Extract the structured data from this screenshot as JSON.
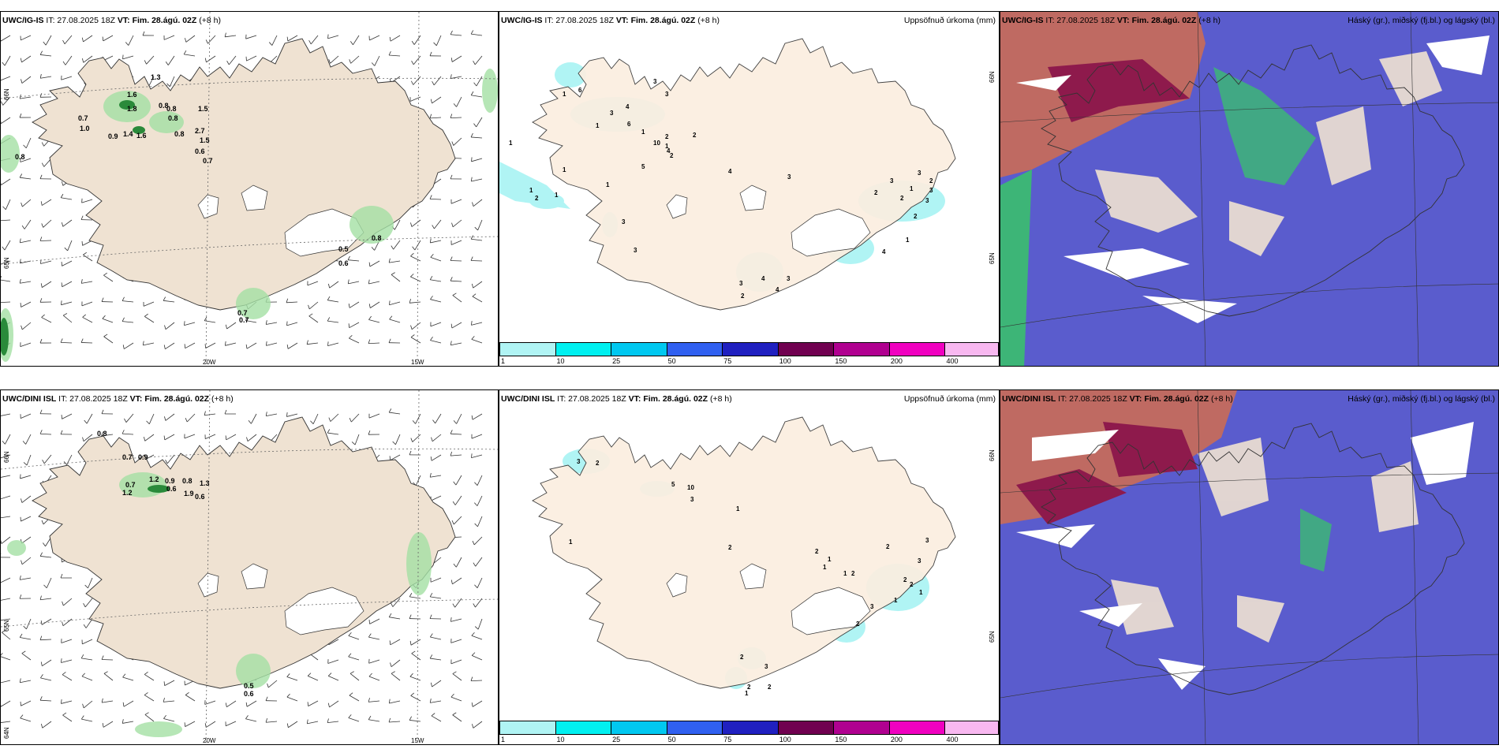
{
  "panels": [
    {
      "model": "UWC/IG-IS",
      "it": "IT: 27.08.2025 18Z",
      "vt_label": "VT:",
      "vt": "Fim. 28.ágú. 02Z",
      "lead": "(+8 h)",
      "right": ""
    },
    {
      "model": "UWC/IG-IS",
      "it": "IT: 27.08.2025 18Z",
      "vt_label": "VT:",
      "vt": "Fim. 28.ágú. 02Z",
      "lead": "(+8 h)",
      "right": "Uppsöfnuð úrkoma (mm)"
    },
    {
      "model": "UWC/IG-IS",
      "it": "IT: 27.08.2025 18Z",
      "vt_label": "VT:",
      "vt": "Fim. 28.ágú. 02Z",
      "lead": "(+8 h)",
      "right": "Háský (gr.), miðský (fj.bl.) og lágský (bl.)"
    },
    {
      "model": "UWC/DINI ISL",
      "it": "IT: 27.08.2025 18Z",
      "vt_label": "VT:",
      "vt": "Fim. 28.ágú. 02Z",
      "lead": "(+8 h)",
      "right": ""
    },
    {
      "model": "UWC/DINI ISL",
      "it": "IT: 27.08.2025 18Z",
      "vt_label": "VT:",
      "vt": "Fim. 28.ágú. 02Z",
      "lead": "(+8 h)",
      "right": "Uppsöfnuð úrkoma (mm)"
    },
    {
      "model": "UWC/DINI ISL",
      "it": "IT: 27.08.2025 18Z",
      "vt_label": "VT:",
      "vt": "Fim. 28.ágú. 02Z",
      "lead": "(+8 h)",
      "right": "Háský (gr.), miðský (fj.bl.) og lágský (bl.)"
    }
  ],
  "legend": {
    "labels": [
      "1",
      "10",
      "25",
      "50",
      "75",
      "100",
      "150",
      "200",
      "400"
    ],
    "colors": [
      "#b0f4f4",
      "#00f0f0",
      "#00c8f0",
      "#3060f0",
      "#2020c0",
      "#700050",
      "#b00090",
      "#f000c0",
      "#f8b8f0"
    ]
  },
  "axes": {
    "top_lon_labels": [
      "20W",
      "15W"
    ],
    "top_lat_labels": [
      "66N",
      "65N"
    ],
    "bottom_lon_labels": [
      "20W",
      "15W"
    ],
    "bottom_lat_labels": [
      "66N",
      "65N",
      "64N"
    ],
    "precip_lat_labels": [
      "66N",
      "65N"
    ]
  },
  "wind_values_top": [
    "1.3",
    "1.6",
    "1.8",
    "0.8",
    "0.7",
    "1.0",
    "0.9",
    "1.4",
    "0.8",
    "1.6",
    "1.5",
    "0.8",
    "0.8",
    "2.7",
    "1.5",
    "0.6",
    "0.7",
    "0.8",
    "0.8",
    "0.5",
    "0.6",
    "0.7",
    "0.7"
  ],
  "wind_values_bottom": [
    "0.8",
    "0.7",
    "0.9",
    "0.7",
    "1.2",
    "1.2",
    "0.9",
    "0.8",
    "1.3",
    "0.6",
    "1.9",
    "0.6",
    "0.5",
    "0.6"
  ],
  "precip_values_top": [
    "3",
    "3",
    "6",
    "1",
    "1",
    "4",
    "3",
    "1",
    "6",
    "1",
    "2",
    "1",
    "10",
    "2",
    "4",
    "2",
    "5",
    "1",
    "4",
    "1",
    "1",
    "1",
    "2",
    "3",
    "2",
    "3",
    "2",
    "1",
    "3",
    "2",
    "3",
    "3",
    "2",
    "1",
    "4",
    "3",
    "3",
    "4",
    "4",
    "3",
    "3",
    "2"
  ],
  "precip_values_bottom": [
    "3",
    "2",
    "5",
    "10",
    "3",
    "1",
    "1",
    "2",
    "2",
    "1",
    "1",
    "1",
    "2",
    "2",
    "3",
    "3",
    "2",
    "2",
    "1",
    "1",
    "3",
    "2",
    "2",
    "3",
    "2",
    "1",
    "2"
  ],
  "colors": {
    "land": "#efe2d2",
    "cloud_high": "#bf6a62",
    "cloud_mid": "#8e1a4c",
    "cloud_low": "#5a5ccd",
    "cloud_green": "#3db577"
  }
}
